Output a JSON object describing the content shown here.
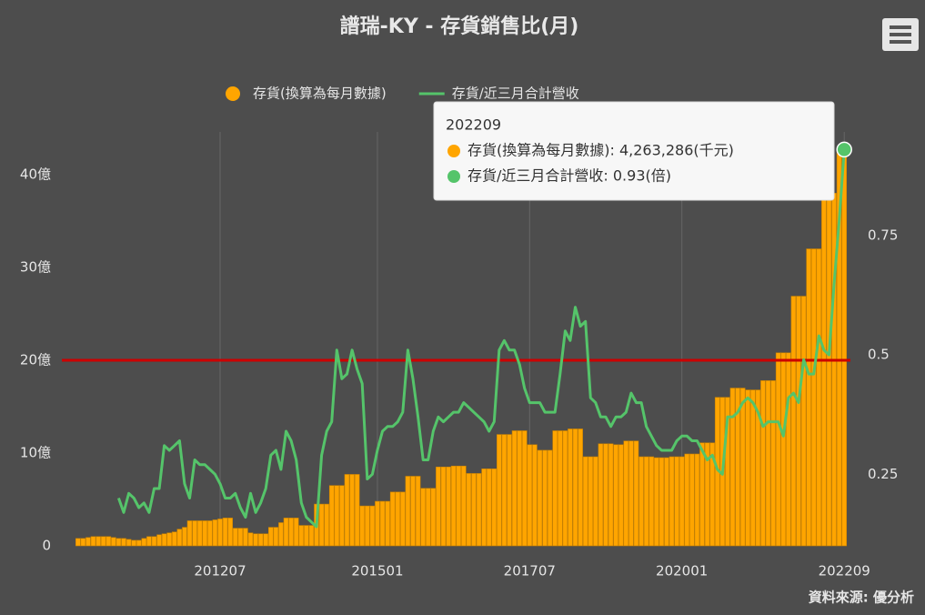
{
  "chart_data": {
    "type": "bar",
    "title": "譜瑞-KY - 存貨銷售比(月)",
    "source": "資料來源: 優分析",
    "categories": [
      null,
      null,
      null,
      null,
      null,
      null,
      null,
      null,
      null,
      null,
      null,
      null,
      null,
      null,
      null,
      null,
      null,
      null,
      null,
      null,
      null,
      null,
      null,
      null,
      null,
      null,
      null,
      null,
      "201207",
      null,
      null,
      null,
      null,
      null,
      null,
      null,
      null,
      null,
      null,
      null,
      null,
      null,
      null,
      null,
      null,
      null,
      null,
      null,
      null,
      null,
      null,
      null,
      null,
      null,
      null,
      null,
      null,
      null,
      null,
      "201501",
      null,
      null,
      null,
      null,
      null,
      null,
      null,
      null,
      null,
      null,
      null,
      null,
      null,
      null,
      null,
      null,
      null,
      null,
      null,
      null,
      null,
      null,
      null,
      null,
      null,
      null,
      null,
      null,
      null,
      "201707",
      null,
      null,
      null,
      null,
      null,
      null,
      null,
      null,
      null,
      null,
      null,
      null,
      null,
      null,
      null,
      null,
      null,
      null,
      null,
      null,
      null,
      null,
      null,
      null,
      null,
      null,
      null,
      null,
      null,
      "202001",
      null,
      null,
      null,
      null,
      null,
      null,
      null,
      null,
      null,
      null,
      null,
      null,
      null,
      null,
      null,
      null,
      null,
      null,
      null,
      null,
      null,
      null,
      null,
      null,
      null,
      null,
      null,
      null,
      null,
      null,
      null,
      "202209"
    ],
    "series": [
      {
        "name": "存貨(換算為每月數據)",
        "type": "bar",
        "color": "#ffa500",
        "values": [
          0.8,
          0.8,
          0.9,
          1.0,
          1.0,
          1.0,
          1.0,
          0.9,
          0.8,
          0.8,
          0.7,
          0.6,
          0.6,
          0.8,
          1.0,
          1.0,
          1.2,
          1.3,
          1.4,
          1.5,
          1.8,
          2.0,
          2.7,
          2.7,
          2.7,
          2.7,
          2.7,
          2.8,
          2.9,
          3.0,
          3.0,
          1.9,
          1.9,
          1.9,
          1.4,
          1.3,
          1.3,
          1.3,
          2.0,
          2.0,
          2.5,
          3.0,
          3.0,
          3.0,
          2.2,
          2.2,
          2.2,
          4.5,
          4.5,
          4.5,
          6.5,
          6.5,
          6.5,
          7.7,
          7.7,
          7.7,
          4.3,
          4.3,
          4.3,
          4.8,
          4.8,
          4.8,
          5.8,
          5.8,
          5.8,
          7.5,
          7.5,
          7.5,
          6.2,
          6.2,
          6.2,
          8.5,
          8.5,
          8.5,
          8.6,
          8.6,
          8.6,
          7.8,
          7.8,
          7.8,
          8.3,
          8.3,
          8.3,
          12.0,
          12.0,
          12.0,
          12.4,
          12.4,
          12.4,
          10.9,
          10.9,
          10.3,
          10.3,
          10.3,
          12.4,
          12.4,
          12.4,
          12.6,
          12.6,
          12.6,
          9.6,
          9.6,
          9.6,
          11.0,
          11.0,
          11.0,
          10.9,
          10.9,
          11.3,
          11.3,
          11.3,
          9.6,
          9.6,
          9.6,
          9.5,
          9.5,
          9.5,
          9.6,
          9.6,
          9.6,
          9.9,
          9.9,
          9.9,
          11.1,
          11.1,
          11.1,
          16.0,
          16.0,
          16.0,
          17.0,
          17.0,
          17.0,
          16.8,
          16.8,
          16.8,
          17.8,
          17.8,
          17.8,
          20.8,
          20.8,
          20.8,
          26.9,
          26.9,
          26.9,
          32.0,
          32.0,
          32.0,
          38.0,
          38.0,
          38.0,
          42.6,
          42.6
        ]
      },
      {
        "name": "存貨/近三月合計營收",
        "type": "line",
        "axis": "y2",
        "color": "#55c46a",
        "values": [
          null,
          null,
          null,
          null,
          null,
          null,
          null,
          null,
          0.2,
          0.17,
          0.21,
          0.2,
          0.18,
          0.19,
          0.17,
          0.22,
          0.22,
          0.31,
          0.3,
          0.31,
          0.32,
          0.23,
          0.2,
          0.28,
          0.27,
          0.27,
          0.26,
          0.25,
          0.23,
          0.2,
          0.2,
          0.21,
          0.18,
          0.16,
          0.21,
          0.17,
          0.19,
          0.22,
          0.29,
          0.3,
          0.26,
          0.34,
          0.32,
          0.28,
          0.19,
          0.16,
          0.15,
          0.14,
          0.29,
          0.34,
          0.36,
          0.51,
          0.45,
          0.46,
          0.51,
          0.47,
          0.44,
          0.24,
          0.25,
          0.3,
          0.34,
          0.35,
          0.35,
          0.36,
          0.38,
          0.51,
          0.45,
          0.37,
          0.28,
          0.28,
          0.34,
          0.37,
          0.36,
          0.37,
          0.38,
          0.38,
          0.4,
          0.39,
          0.38,
          0.37,
          0.36,
          0.34,
          0.36,
          0.51,
          0.53,
          0.51,
          0.51,
          0.48,
          0.43,
          0.4,
          0.4,
          0.4,
          0.38,
          0.38,
          0.38,
          0.46,
          0.55,
          0.53,
          0.6,
          0.56,
          0.57,
          0.41,
          0.4,
          0.37,
          0.37,
          0.35,
          0.37,
          0.37,
          0.38,
          0.42,
          0.4,
          0.4,
          0.35,
          0.33,
          0.31,
          0.3,
          0.3,
          0.3,
          0.32,
          0.33,
          0.33,
          0.32,
          0.32,
          0.3,
          0.28,
          0.29,
          0.26,
          0.25,
          0.37,
          0.37,
          0.38,
          0.4,
          0.41,
          0.4,
          0.38,
          0.35,
          0.36,
          0.36,
          0.36,
          0.33,
          0.41,
          0.42,
          0.4,
          0.49,
          0.46,
          0.46,
          0.54,
          0.51,
          0.5,
          0.65,
          0.78,
          0.93
        ]
      }
    ],
    "ylim": [
      0,
      44.6
    ],
    "yticks": [
      0,
      {
        "value": 10,
        "label": "10億"
      },
      {
        "value": 20,
        "label": "20億"
      },
      {
        "value": 30,
        "label": "30億"
      },
      {
        "value": 40,
        "label": "40億"
      }
    ],
    "y2lim": [
      0.1,
      0.967
    ],
    "y2ticks": [
      0.25,
      0.5,
      0.75
    ],
    "plot_lines": [
      {
        "value": 20,
        "color": "#cc0000"
      }
    ],
    "grid": "x",
    "legend": "top",
    "tooltip": {
      "title": "202209",
      "items": [
        "存貨(換算為每月數據): 4,263,286(千元)",
        "存貨/近三月合計營收: 0.93(倍)"
      ]
    }
  }
}
